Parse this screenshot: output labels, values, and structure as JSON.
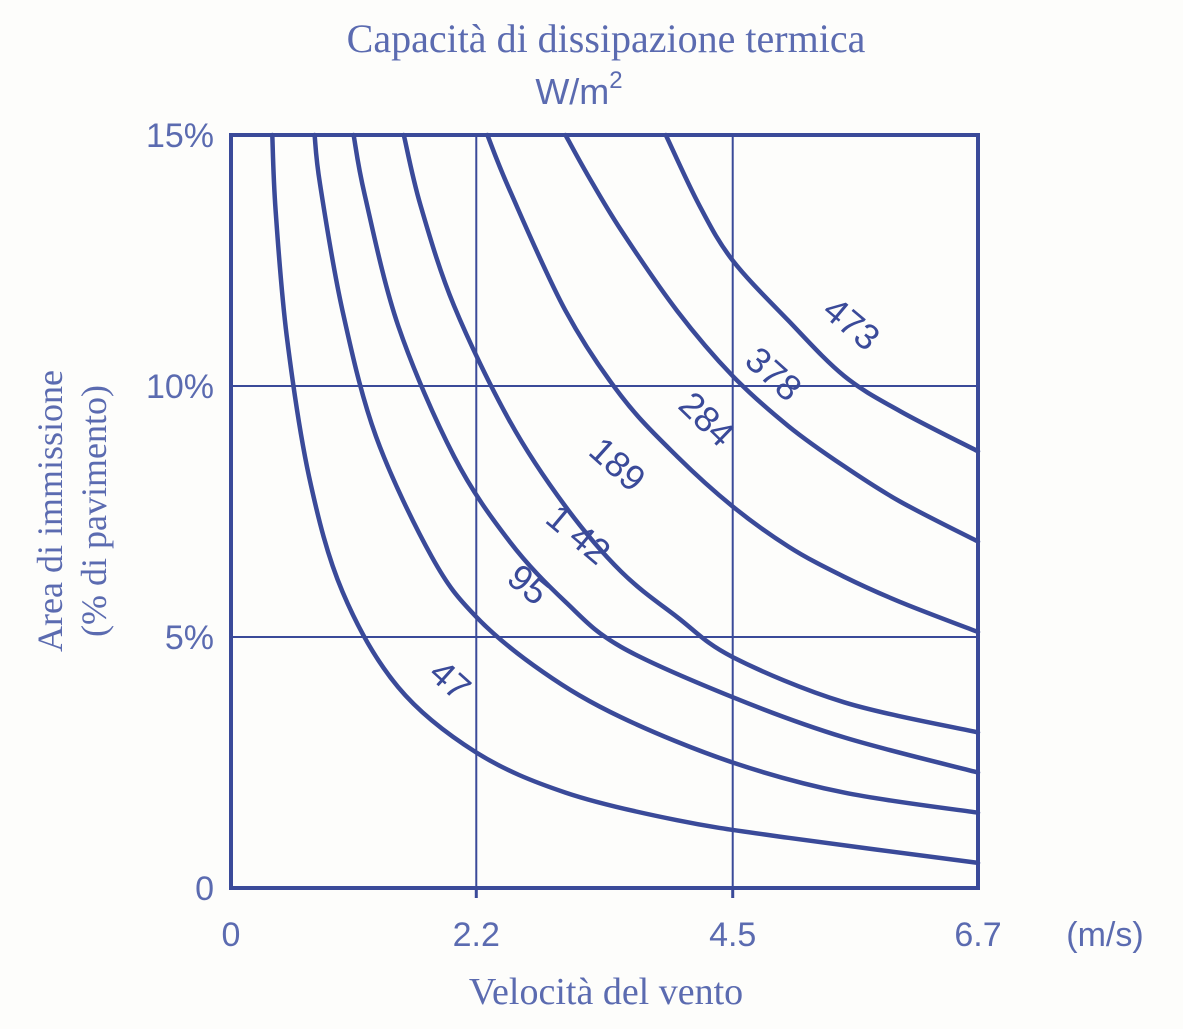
{
  "colors": {
    "ink": "#3a4a99",
    "text": "#5b6bb0",
    "paper": "#fdfdfb"
  },
  "chart_data": {
    "type": "line",
    "title": "Capacità di dissipazione termica",
    "subtitle": "W/m²",
    "subtitle_base": "W/m",
    "subtitle_exp": "2",
    "xlabel": "Velocità del vento",
    "xunit": "(m/s)",
    "ylabel_line1": "Area di immissione",
    "ylabel_line2": "(% di pavimento)",
    "xlim": [
      0,
      6.7
    ],
    "ylim": [
      0,
      15
    ],
    "x_ticks": [
      0,
      2.2,
      4.5,
      6.7
    ],
    "x_tick_labels": [
      "0",
      "2.2",
      "4.5",
      "6.7"
    ],
    "y_ticks": [
      0,
      5,
      10,
      15
    ],
    "y_tick_labels": [
      "0",
      "5%",
      "10%",
      "15%"
    ],
    "grid": true,
    "series": [
      {
        "name": "47",
        "x": [
          0.37,
          0.4,
          0.5,
          0.7,
          1.0,
          1.5,
          2.2,
          3.0,
          4.0,
          5.0,
          6.7
        ],
        "y": [
          15,
          13.5,
          11.0,
          8.2,
          5.9,
          4.0,
          2.7,
          1.9,
          1.35,
          1.0,
          0.5
        ]
      },
      {
        "name": "95",
        "x": [
          0.75,
          0.8,
          1.0,
          1.3,
          1.8,
          2.2,
          2.8,
          3.5,
          4.5,
          5.5,
          6.7
        ],
        "y": [
          15,
          14.0,
          11.5,
          9.0,
          6.6,
          5.4,
          4.3,
          3.4,
          2.5,
          1.9,
          1.5
        ]
      },
      {
        "name": "142",
        "x": [
          1.1,
          1.2,
          1.5,
          2.0,
          2.5,
          3.0,
          3.5,
          4.5,
          5.5,
          6.7
        ],
        "y": [
          15,
          13.8,
          11.2,
          8.6,
          6.9,
          5.7,
          4.8,
          3.8,
          3.0,
          2.3
        ]
      },
      {
        "name": "189",
        "x": [
          1.55,
          1.7,
          2.0,
          2.5,
          3.0,
          3.5,
          4.0,
          4.5,
          5.5,
          6.7
        ],
        "y": [
          15,
          13.6,
          11.6,
          9.3,
          7.6,
          6.3,
          5.4,
          4.6,
          3.7,
          3.1
        ]
      },
      {
        "name": "284",
        "x": [
          2.3,
          2.5,
          3.0,
          3.5,
          4.0,
          4.5,
          5.0,
          5.5,
          6.0,
          6.7
        ],
        "y": [
          15,
          13.9,
          11.5,
          9.8,
          8.6,
          7.6,
          6.8,
          6.2,
          5.7,
          5.1
        ]
      },
      {
        "name": "378",
        "x": [
          3.0,
          3.2,
          3.5,
          4.0,
          4.5,
          5.0,
          5.5,
          6.0,
          6.7
        ],
        "y": [
          15,
          14.2,
          13.1,
          11.5,
          10.2,
          9.2,
          8.4,
          7.7,
          6.9
        ]
      },
      {
        "name": "473",
        "x": [
          3.9,
          4.2,
          4.5,
          5.0,
          5.5,
          6.0,
          6.7
        ],
        "y": [
          15,
          13.6,
          12.5,
          11.3,
          10.2,
          9.5,
          8.7
        ]
      }
    ],
    "curve_labels": [
      {
        "text": "47",
        "x": 1.95,
        "y": 4.1,
        "angle": 42
      },
      {
        "text": "95",
        "x": 2.65,
        "y": 6.0,
        "angle": 40
      },
      {
        "text": "1 42",
        "x": 3.1,
        "y": 7.0,
        "angle": 40
      },
      {
        "text": "189",
        "x": 3.45,
        "y": 8.4,
        "angle": 42
      },
      {
        "text": "284",
        "x": 4.25,
        "y": 9.3,
        "angle": 44
      },
      {
        "text": "378",
        "x": 4.85,
        "y": 10.2,
        "angle": 42
      },
      {
        "text": "473",
        "x": 5.55,
        "y": 11.2,
        "angle": 40
      }
    ]
  }
}
